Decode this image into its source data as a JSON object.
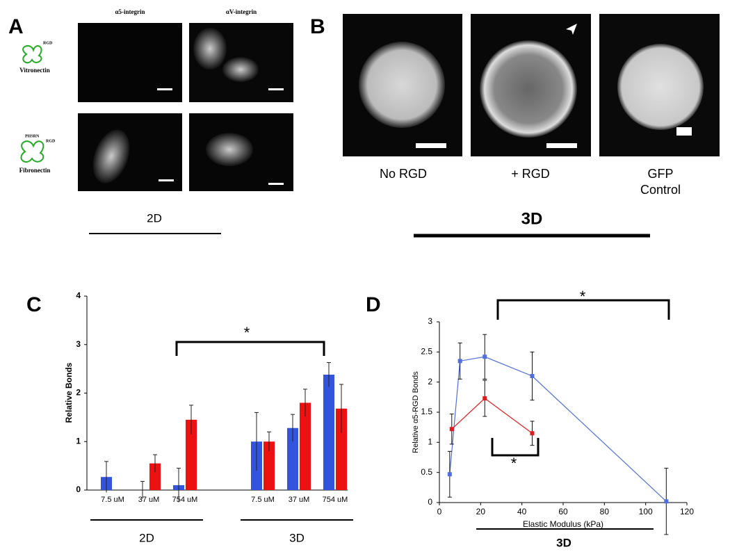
{
  "panels": {
    "A": {
      "label": "A",
      "columns": [
        "α5-integrin",
        "αV-integrin"
      ],
      "rows": [
        {
          "name": "Vitronectin",
          "motifs": [
            "RGD"
          ]
        },
        {
          "name": "Fibronectin",
          "motifs": [
            "PHSRN",
            "RGD"
          ]
        }
      ],
      "group": "2D"
    },
    "B": {
      "label": "B",
      "captions": [
        [
          "No RGD"
        ],
        [
          "+ RGD"
        ],
        [
          "GFP",
          "Control"
        ]
      ],
      "group": "3D"
    }
  },
  "chart_data": [
    {
      "type": "bar",
      "label": "C",
      "y_label": "Relative Bonds",
      "categories": [
        "7.5 uM",
        "37 uM",
        "754 uM",
        "7.5 uM",
        "37 uM",
        "754 uM"
      ],
      "groups": [
        "2D",
        "3D"
      ],
      "series": [
        {
          "color": "#3355dd",
          "values": [
            0.27,
            0,
            0.1,
            1.0,
            1.28,
            2.38
          ],
          "errors": [
            0.32,
            0.18,
            0.35,
            0.6,
            0.28,
            0.25
          ]
        },
        {
          "color": "#ee1111",
          "values": [
            0,
            0.55,
            1.45,
            1.0,
            1.8,
            1.68
          ],
          "errors": [
            null,
            0.18,
            0.3,
            0.2,
            0.28,
            0.5
          ]
        }
      ],
      "ylim": [
        0,
        4
      ],
      "yticks": [
        0,
        1,
        2,
        3,
        4
      ],
      "annotations": [
        "*"
      ]
    },
    {
      "type": "line",
      "label": "D",
      "x_label": "Elastic Modulus (kPa)",
      "y_label": "Relative α5-RGD Bonds",
      "series": [
        {
          "color": "#4f6fdc",
          "x": [
            5,
            10,
            22,
            45,
            110
          ],
          "values": [
            0.47,
            2.35,
            2.42,
            2.1,
            0.02
          ],
          "errors": [
            0.38,
            0.3,
            0.37,
            0.4,
            0.55
          ]
        },
        {
          "color": "#e01b1b",
          "x": [
            6,
            22,
            45
          ],
          "values": [
            1.22,
            1.73,
            1.15
          ],
          "errors": [
            0.25,
            0.3,
            0.2
          ]
        }
      ],
      "xlim": [
        0,
        120
      ],
      "xticks": [
        0,
        20,
        40,
        60,
        80,
        100,
        120
      ],
      "ylim": [
        0,
        3
      ],
      "yticks": [
        0,
        0.5,
        1,
        1.5,
        2,
        2.5,
        3
      ],
      "annotations": [
        "*",
        "*"
      ],
      "group": "3D"
    }
  ]
}
